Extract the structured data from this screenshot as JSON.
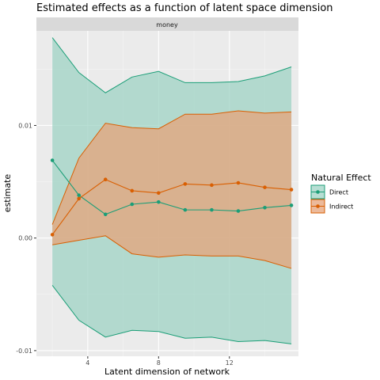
{
  "chart_data": {
    "type": "line",
    "title": "Estimated effects as a function of latent space dimension",
    "facet": "money",
    "xlabel": "Latent dimension of network",
    "ylabel": "estimate",
    "xlim": [
      1.1,
      15.9
    ],
    "ylim": [
      -0.0105,
      0.0184
    ],
    "x_ticks": [
      4,
      8,
      12
    ],
    "x_tick_labels": [
      "4",
      "8",
      "12"
    ],
    "y_ticks": [
      -0.01,
      0.0,
      0.01
    ],
    "y_tick_labels": [
      "-0.01",
      "0.00",
      "0.01"
    ],
    "grid": true,
    "legend": {
      "title": "Natural Effect",
      "position": "right"
    },
    "x": [
      2,
      3.5,
      5,
      6.5,
      8,
      9.5,
      11,
      12.5,
      14,
      15.5
    ],
    "series": [
      {
        "name": "Direct",
        "color": "#1b9e77",
        "fill": "#9fd3c4",
        "values": [
          0.0069,
          0.0038,
          0.0021,
          0.003,
          0.0032,
          0.0025,
          0.0025,
          0.0024,
          0.0027,
          0.0029
        ],
        "lower": [
          -0.0042,
          -0.0073,
          -0.0088,
          -0.0082,
          -0.0083,
          -0.0089,
          -0.0088,
          -0.0092,
          -0.0091,
          -0.0094
        ],
        "upper": [
          0.0178,
          0.0147,
          0.0129,
          0.0143,
          0.0148,
          0.0138,
          0.0138,
          0.0139,
          0.0144,
          0.0152
        ]
      },
      {
        "name": "Indirect",
        "color": "#d95f02",
        "fill": "#e6a37a",
        "values": [
          0.0003,
          0.0035,
          0.0052,
          0.0042,
          0.004,
          0.0048,
          0.0047,
          0.0049,
          0.0045,
          0.0043
        ],
        "lower": [
          -0.0006,
          -0.0002,
          0.0002,
          -0.0014,
          -0.0017,
          -0.0015,
          -0.0016,
          -0.0016,
          -0.002,
          -0.0027
        ],
        "upper": [
          0.0012,
          0.0071,
          0.0102,
          0.0098,
          0.0097,
          0.011,
          0.011,
          0.0113,
          0.0111,
          0.0112
        ]
      }
    ]
  }
}
